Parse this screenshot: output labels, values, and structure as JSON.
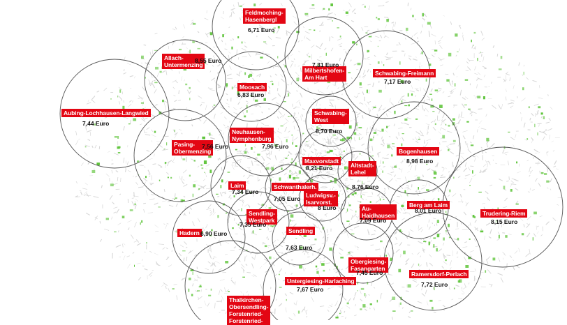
{
  "districts": [
    {
      "id": "feldmoching",
      "name": "Feldmoching-\nHasenbergl",
      "price": "6,71 Euro"
    },
    {
      "id": "allach",
      "name": "Allach-\nUntermenzing",
      "price": "8,55 Euro"
    },
    {
      "id": "milbertshofen",
      "name": "Milbertshofen-\nAm Hart",
      "price": "7,31 Euro"
    },
    {
      "id": "schwabing-freimann",
      "name": "Schwabing-Freimann",
      "price": "7,17 Euro"
    },
    {
      "id": "moosach",
      "name": "Moosach",
      "price": "6,83 Euro"
    },
    {
      "id": "aubing",
      "name": "Aubing-Lochhausen-Langwied",
      "price": "7,44 Euro"
    },
    {
      "id": "schwabing-west",
      "name": "Schwabing-\nWest",
      "price": "8,70 Euro"
    },
    {
      "id": "pasing",
      "name": "Pasing-\nObermenzing",
      "price": "7,56 Euro"
    },
    {
      "id": "neuhausen",
      "name": "Neuhausen-\nNymphenburg",
      "price": "7,96 Euro"
    },
    {
      "id": "bogenhausen",
      "name": "Bogenhausen",
      "price": "8,98 Euro"
    },
    {
      "id": "maxvorstadt",
      "name": "Maxvorstadt",
      "price": "8,21 Euro"
    },
    {
      "id": "altstadt",
      "name": "Altstadt-\nLehel",
      "price": "8,76 Euro"
    },
    {
      "id": "laim",
      "name": "Laim",
      "price": "7,34 Euro"
    },
    {
      "id": "schwanthalerhoehe",
      "name": "Schwanthalerh.",
      "price": "7,05 Euro"
    },
    {
      "id": "ludwigsvorstadt",
      "name": "Ludwigsv.-\nIsarvorst.",
      "price": "8 Euro"
    },
    {
      "id": "berg-am-laim",
      "name": "Berg am Laim",
      "price": "8,01 Euro"
    },
    {
      "id": "au-haidhausen",
      "name": "Au-\nHaidhausen",
      "price": "7,09 Euro"
    },
    {
      "id": "trudering",
      "name": "Trudering-Riem",
      "price": "8,15 Euro"
    },
    {
      "id": "sendling-westpark",
      "name": "Sendling-\nWestpark",
      "price": "7,35 Euro"
    },
    {
      "id": "hadern",
      "name": "Hadern",
      "price": "6,90 Euro"
    },
    {
      "id": "sendling",
      "name": "Sendling",
      "price": "7,63 Euro"
    },
    {
      "id": "obergiesing",
      "name": "Obergiesing-\nFasangarten",
      "price": "7,45 Euro"
    },
    {
      "id": "ramersdorf",
      "name": "Ramersdorf-Perlach",
      "price": "7,72 Euro"
    },
    {
      "id": "untergiesing",
      "name": "Untergiesing-Harlaching",
      "price": "7,67 Euro"
    },
    {
      "id": "thalkirchen",
      "name": "Thalkirchen-\nObersendling-\nForstenried-\nForstenried-",
      "price": ""
    }
  ],
  "colors": {
    "label_bg": "#e30613",
    "label_text": "#ffffff",
    "circle": "#555555",
    "park": "#5ec43a",
    "streets": "#d6d6d6"
  }
}
